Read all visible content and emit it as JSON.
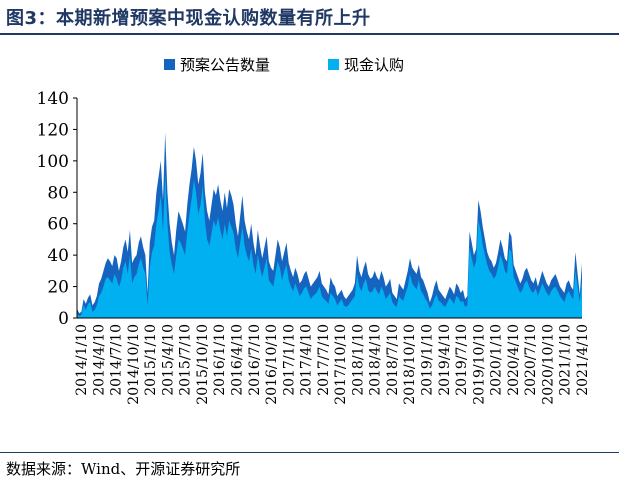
{
  "figure": {
    "title": "图3：本期新增预案中现金认购数量有所上升",
    "source": "数据来源：Wind、开源证券研究所"
  },
  "colors": {
    "title": "#1f3864",
    "series_plan": "#1565c0",
    "series_cash": "#00b0f0"
  },
  "chart_data": {
    "type": "area",
    "title": "",
    "xlabel": "",
    "ylabel": "",
    "ylim": [
      0,
      140
    ],
    "yticks": [
      0,
      20,
      40,
      60,
      80,
      100,
      120,
      140
    ],
    "grid": false,
    "legend": "top-center",
    "x_tick_labels": [
      "2014/1/10",
      "2014/4/10",
      "2014/7/10",
      "2014/10/10",
      "2015/1/10",
      "2015/4/10",
      "2015/7/10",
      "2015/10/10",
      "2016/1/10",
      "2016/4/10",
      "2016/7/10",
      "2016/10/10",
      "2017/1/10",
      "2017/4/10",
      "2017/7/10",
      "2017/10/10",
      "2018/1/10",
      "2018/4/10",
      "2018/7/10",
      "2018/10/10",
      "2019/1/10",
      "2019/4/10",
      "2019/7/10",
      "2019/10/10",
      "2020/1/10",
      "2020/4/10",
      "2020/7/10",
      "2020/10/10",
      "2021/1/10",
      "2021/4/10"
    ],
    "series": [
      {
        "name": "预案公告数量",
        "values": [
          6,
          3,
          4,
          12,
          9,
          13,
          15,
          8,
          10,
          14,
          22,
          25,
          30,
          35,
          38,
          36,
          33,
          40,
          38,
          30,
          36,
          45,
          50,
          42,
          56,
          35,
          38,
          40,
          48,
          52,
          45,
          40,
          16,
          48,
          58,
          62,
          80,
          90,
          100,
          75,
          118,
          80,
          60,
          48,
          40,
          56,
          68,
          64,
          60,
          55,
          72,
          85,
          95,
          109,
          100,
          85,
          92,
          105,
          80,
          68,
          62,
          72,
          82,
          78,
          85,
          75,
          68,
          80,
          70,
          82,
          78,
          72,
          60,
          52,
          65,
          78,
          62,
          55,
          50,
          60,
          48,
          40,
          56,
          46,
          38,
          45,
          52,
          36,
          32,
          30,
          40,
          50,
          45,
          36,
          42,
          48,
          35,
          30,
          26,
          32,
          28,
          22,
          24,
          28,
          30,
          25,
          20,
          22,
          24,
          26,
          30,
          22,
          20,
          18,
          15,
          26,
          22,
          20,
          14,
          16,
          18,
          14,
          12,
          14,
          16,
          18,
          22,
          40,
          30,
          26,
          32,
          36,
          28,
          25,
          26,
          30,
          26,
          24,
          30,
          26,
          20,
          22,
          25,
          16,
          14,
          12,
          22,
          20,
          18,
          24,
          30,
          38,
          32,
          30,
          28,
          34,
          26,
          24,
          20,
          16,
          10,
          14,
          20,
          24,
          18,
          16,
          14,
          12,
          16,
          20,
          18,
          15,
          22,
          20,
          16,
          18,
          12,
          14,
          55,
          48,
          40,
          44,
          75,
          68,
          58,
          50,
          42,
          38,
          36,
          32,
          35,
          42,
          50,
          45,
          38,
          36,
          55,
          52,
          34,
          30,
          26,
          22,
          25,
          30,
          32,
          28,
          24,
          22,
          26,
          20,
          25,
          30,
          26,
          22,
          20,
          24,
          26,
          28,
          24,
          20,
          18,
          16,
          22,
          24,
          20,
          18,
          42,
          28,
          15,
          35
        ]
      },
      {
        "name": "现金认购",
        "values": [
          3,
          1,
          2,
          8,
          5,
          9,
          10,
          4,
          5,
          8,
          14,
          16,
          20,
          25,
          26,
          24,
          22,
          28,
          25,
          20,
          24,
          32,
          36,
          28,
          40,
          22,
          26,
          28,
          34,
          38,
          32,
          28,
          8,
          32,
          42,
          46,
          60,
          68,
          78,
          55,
          92,
          60,
          42,
          34,
          28,
          40,
          50,
          48,
          44,
          40,
          55,
          66,
          76,
          88,
          80,
          66,
          72,
          84,
          62,
          50,
          46,
          54,
          62,
          58,
          64,
          56,
          50,
          60,
          52,
          62,
          58,
          54,
          44,
          38,
          48,
          58,
          46,
          40,
          36,
          44,
          34,
          28,
          40,
          32,
          26,
          32,
          38,
          24,
          22,
          20,
          28,
          36,
          32,
          24,
          30,
          34,
          24,
          20,
          17,
          22,
          18,
          14,
          16,
          19,
          20,
          16,
          12,
          14,
          15,
          17,
          20,
          14,
          12,
          11,
          9,
          16,
          14,
          12,
          8,
          10,
          12,
          8,
          7,
          8,
          10,
          12,
          14,
          28,
          20,
          17,
          22,
          25,
          18,
          16,
          17,
          20,
          17,
          15,
          20,
          17,
          12,
          14,
          16,
          10,
          8,
          7,
          14,
          12,
          11,
          16,
          20,
          28,
          22,
          20,
          18,
          24,
          17,
          15,
          12,
          10,
          6,
          8,
          12,
          15,
          11,
          10,
          8,
          7,
          10,
          13,
          11,
          9,
          14,
          13,
          10,
          11,
          7,
          8,
          45,
          38,
          32,
          36,
          62,
          56,
          46,
          40,
          34,
          30,
          28,
          25,
          27,
          33,
          40,
          36,
          30,
          28,
          44,
          42,
          26,
          23,
          19,
          16,
          18,
          22,
          24,
          20,
          17,
          16,
          19,
          14,
          18,
          22,
          19,
          16,
          14,
          17,
          19,
          20,
          17,
          14,
          12,
          10,
          15,
          17,
          14,
          12,
          30,
          20,
          10,
          24
        ]
      }
    ]
  }
}
